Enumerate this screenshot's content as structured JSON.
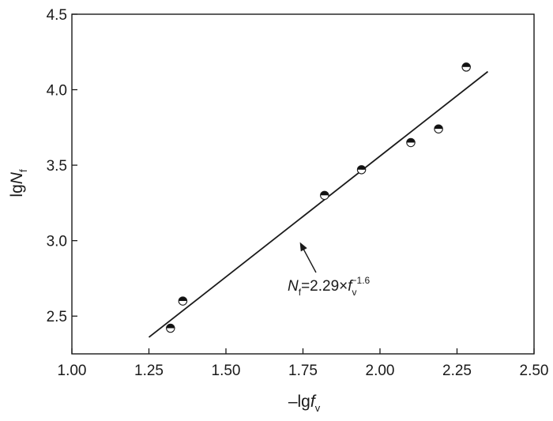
{
  "chart_data": {
    "type": "scatter",
    "xlabel": {
      "prefix": "–lg",
      "var": "f",
      "sub": "v"
    },
    "ylabel": {
      "prefix": "lg",
      "var": "N",
      "sub": "f"
    },
    "xlim": [
      1.0,
      2.5
    ],
    "ylim": [
      2.25,
      4.5
    ],
    "xticks": [
      "1.00",
      "1.25",
      "1.50",
      "1.75",
      "2.00",
      "2.25",
      "2.50"
    ],
    "yticks": [
      "2.5",
      "3.0",
      "3.5",
      "4.0",
      "4.5"
    ],
    "grid": false,
    "legend": "none",
    "points": [
      {
        "x": 1.32,
        "y": 2.42
      },
      {
        "x": 1.36,
        "y": 2.6
      },
      {
        "x": 1.82,
        "y": 3.3
      },
      {
        "x": 1.94,
        "y": 3.47
      },
      {
        "x": 2.1,
        "y": 3.65
      },
      {
        "x": 2.19,
        "y": 3.74
      },
      {
        "x": 2.28,
        "y": 4.15
      }
    ],
    "fit_line": {
      "x": [
        1.25,
        2.35
      ],
      "y": [
        2.36,
        4.12
      ]
    },
    "annotation": {
      "var": "N",
      "var_sub": "f",
      "middle": "=2.29×",
      "var2": "f",
      "var2_sub": "v",
      "exponent": "−1.6",
      "arrow_target": {
        "x": 1.74,
        "y": 2.99
      }
    },
    "colors": {
      "axis": "#1a1a1a",
      "line": "#1a1a1a",
      "marker_fill_dark": "#111111",
      "marker_fill_light": "#ffffff"
    }
  }
}
